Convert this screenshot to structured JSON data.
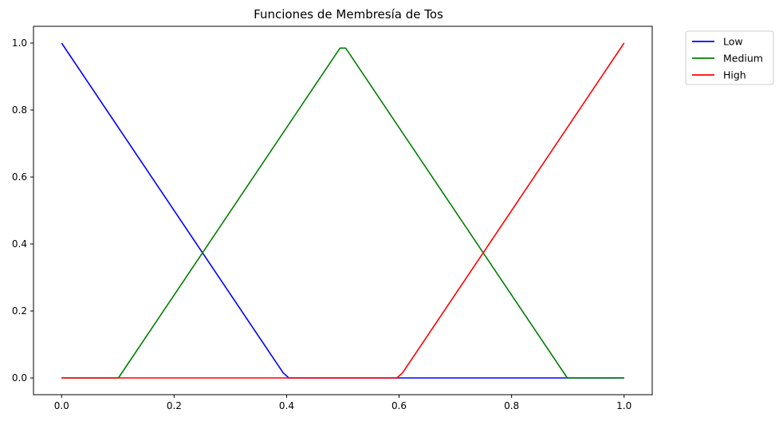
{
  "chart_data": {
    "type": "line",
    "title": "Funciones de Membresía de Tos",
    "xlabel": "",
    "ylabel": "",
    "xlim": [
      -0.05,
      1.05
    ],
    "ylim": [
      -0.05,
      1.05
    ],
    "xticks": [
      0.0,
      0.2,
      0.4,
      0.6,
      0.8,
      1.0
    ],
    "xtick_labels": [
      "0.0",
      "0.2",
      "0.4",
      "0.6",
      "0.8",
      "1.0"
    ],
    "yticks": [
      0.0,
      0.2,
      0.4,
      0.6,
      0.8,
      1.0
    ],
    "ytick_labels": [
      "0.0",
      "0.2",
      "0.4",
      "0.6",
      "0.8",
      "1.0"
    ],
    "grid": false,
    "legend_position": "outside-top-right",
    "series": [
      {
        "name": "Low",
        "color": "#0000ff",
        "points": [
          [
            0.0,
            1.0
          ],
          [
            0.394,
            0.015
          ],
          [
            0.404,
            0.0
          ],
          [
            1.0,
            0.0
          ]
        ]
      },
      {
        "name": "Medium",
        "color": "#008000",
        "points": [
          [
            0.0,
            0.0
          ],
          [
            0.101,
            0.0
          ],
          [
            0.495,
            0.985
          ],
          [
            0.505,
            0.985
          ],
          [
            0.899,
            0.0
          ],
          [
            1.0,
            0.0
          ]
        ]
      },
      {
        "name": "High",
        "color": "#ff0000",
        "points": [
          [
            0.0,
            0.0
          ],
          [
            0.596,
            0.0
          ],
          [
            0.606,
            0.015
          ],
          [
            1.0,
            1.0
          ]
        ]
      }
    ]
  }
}
